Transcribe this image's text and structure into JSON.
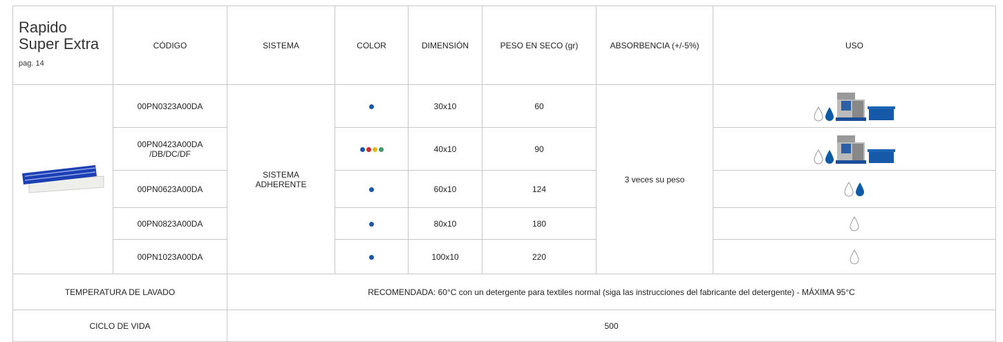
{
  "header": {
    "title": "Rapido Super Extra",
    "page_ref": "pag. 14",
    "columns": [
      "CÓDIGO",
      "SISTEMA",
      "COLOR",
      "DIMENSIÓN",
      "PESO EN SECO (gr)",
      "ABSORBENCIA (+/-5%)",
      "USO"
    ]
  },
  "rows": [
    {
      "codigo": "00PN0323A00DA",
      "dimension": "30x10",
      "peso": 60
    },
    {
      "codigo": "00PN0423A00DA /DB/DC/DF",
      "dimension": "40x10",
      "peso": 90
    },
    {
      "codigo": "00PN0623A00DA",
      "dimension": "60x10",
      "peso": 124
    },
    {
      "codigo": "00PN0823A00DA",
      "dimension": "80x10",
      "peso": 180
    },
    {
      "codigo": "00PN1023A00DA",
      "dimension": "100x10",
      "peso": 220
    }
  ],
  "sistema": "SISTEMA ADHERENTE",
  "absorbencia": "3 veces su peso",
  "temperatura": {
    "label": "TEMPERATURA DE LAVADO",
    "value": "RECOMENDADA: 60°C con un detergente para textiles normal (siga las instrucciones del fabricante del detergente) - MÁXIMA 95°C"
  },
  "ciclo_de_vida": {
    "label": "CICLO DE VIDA",
    "value": 500
  }
}
